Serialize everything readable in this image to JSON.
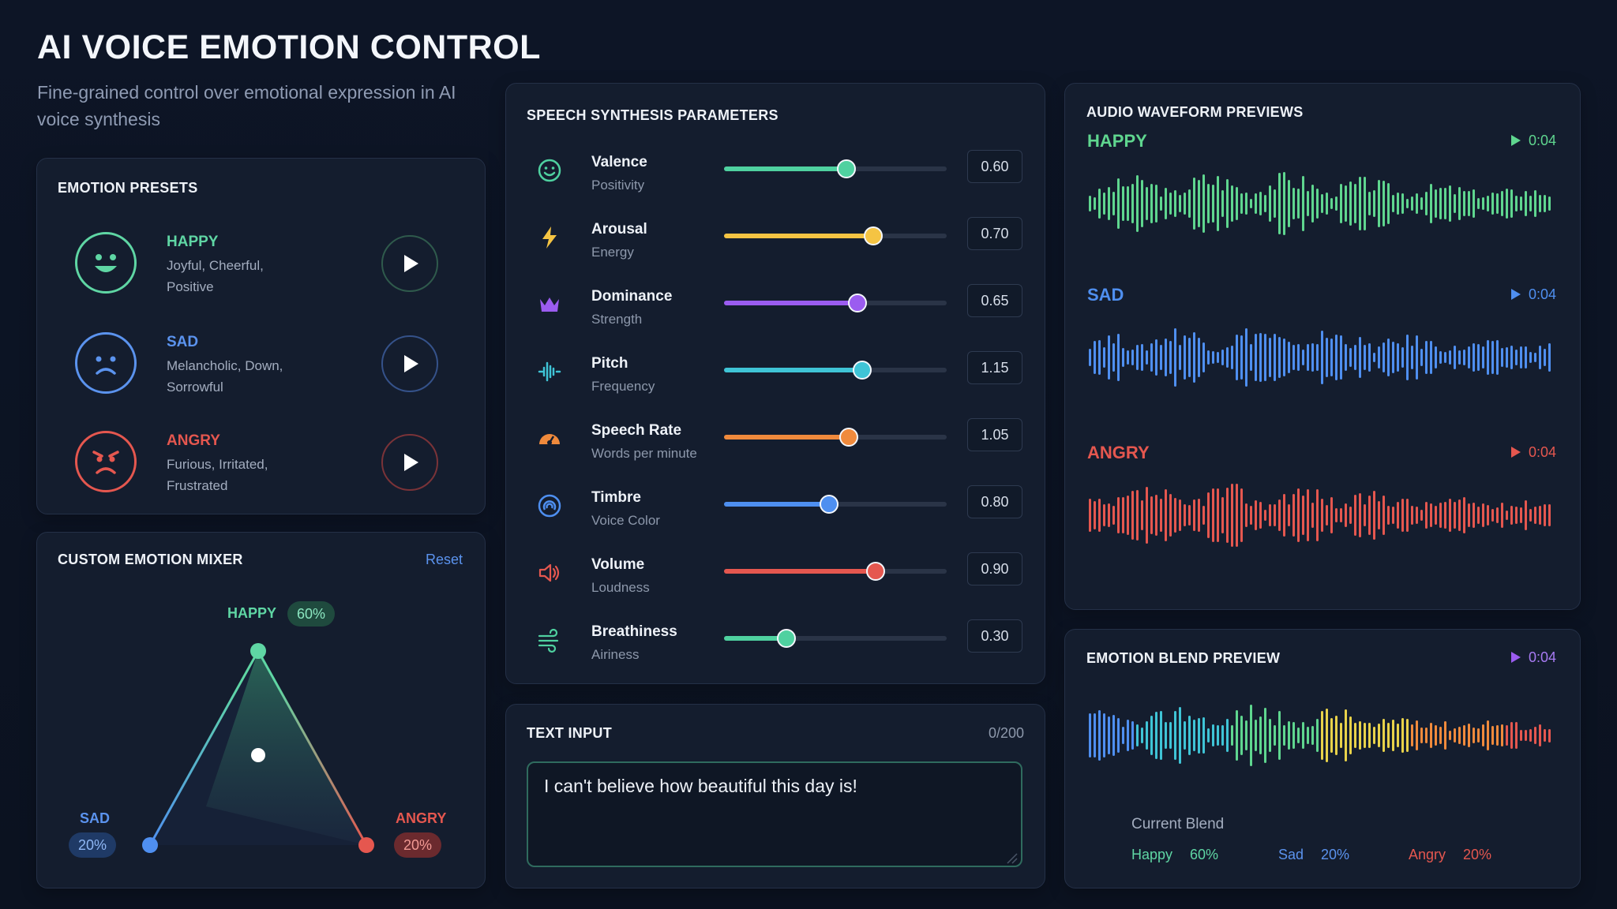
{
  "header": {
    "title": "AI VOICE EMOTION CONTROL",
    "subtitle": "Fine-grained control over emotional expression in AI voice synthesis"
  },
  "presets": {
    "title": "EMOTION PRESETS",
    "items": [
      {
        "name": "HAPPY",
        "desc_1": "Joyful, Cheerful,",
        "desc_2": "Positive",
        "color": "#5fd6a4",
        "icon": "happy-face-icon"
      },
      {
        "name": "SAD",
        "desc_1": "Melancholic, Down,",
        "desc_2": "Sorrowful",
        "color": "#5b93ee",
        "icon": "sad-face-icon"
      },
      {
        "name": "ANGRY",
        "desc_1": "Furious, Irritated,",
        "desc_2": "Frustrated",
        "color": "#e5574f",
        "icon": "angry-face-icon"
      }
    ]
  },
  "mixer": {
    "title": "CUSTOM EMOTION MIXER",
    "reset_label": "Reset",
    "happy_label": "HAPPY",
    "happy_pct": "60%",
    "happy_value": 0.6,
    "sad_label": "SAD",
    "sad_pct": "20%",
    "sad_value": 0.2,
    "angry_label": "ANGRY",
    "angry_pct": "20%",
    "angry_value": 0.2
  },
  "params": {
    "title": "SPEECH SYNTHESIS PARAMETERS",
    "items": [
      {
        "name": "Valence",
        "sub": "Positivity",
        "value": "0.60",
        "level": 0.55,
        "color": "#4fd1a0",
        "icon": "smiley-icon"
      },
      {
        "name": "Arousal",
        "sub": "Energy",
        "value": "0.70",
        "level": 0.67,
        "color": "#f5c443",
        "icon": "lightning-icon"
      },
      {
        "name": "Dominance",
        "sub": "Strength",
        "value": "0.65",
        "level": 0.6,
        "color": "#9b5cf0",
        "icon": "crown-icon"
      },
      {
        "name": "Pitch",
        "sub": "Frequency",
        "value": "1.15",
        "level": 0.62,
        "color": "#3fc4d6",
        "icon": "pitch-wave-icon"
      },
      {
        "name": "Speech Rate",
        "sub": "Words per minute",
        "value": "1.05",
        "level": 0.56,
        "color": "#f08a3c",
        "icon": "speedometer-icon"
      },
      {
        "name": "Timbre",
        "sub": "Voice Color",
        "value": "0.80",
        "level": 0.47,
        "color": "#4e8ff0",
        "icon": "timbre-icon"
      },
      {
        "name": "Volume",
        "sub": "Loudness",
        "value": "0.90",
        "level": 0.68,
        "color": "#e5574f",
        "icon": "speaker-icon"
      },
      {
        "name": "Breathiness",
        "sub": "Airiness",
        "value": "0.30",
        "level": 0.28,
        "color": "#4fd1a0",
        "icon": "wind-icon"
      }
    ]
  },
  "text_input": {
    "title": "TEXT INPUT",
    "counter": "0/200",
    "value": "I can't believe how beautiful this day is!"
  },
  "waveforms": {
    "title": "AUDIO WAVEFORM PREVIEWS",
    "items": [
      {
        "name": "HAPPY",
        "duration": "0:04",
        "color": "#5fd68f"
      },
      {
        "name": "SAD",
        "duration": "0:04",
        "color": "#4f8ff0"
      },
      {
        "name": "ANGRY",
        "duration": "0:04",
        "color": "#e5574f"
      }
    ]
  },
  "blend": {
    "title": "EMOTION BLEND PREVIEW",
    "duration": "0:04",
    "current_label": "Current Blend",
    "happy_label": "Happy",
    "happy_pct": "60%",
    "sad_label": "Sad",
    "sad_pct": "20%",
    "angry_label": "Angry",
    "angry_pct": "20%",
    "accent": "#9b5cf0"
  }
}
